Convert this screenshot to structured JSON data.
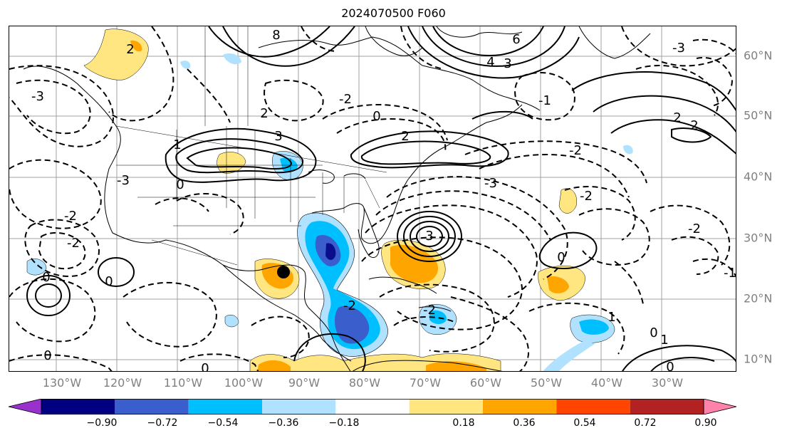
{
  "title": "2024070500 F060",
  "lon_labels": [
    "130°W",
    "120°W",
    "110°W",
    "100°W",
    "90°W",
    "80°W",
    "70°W",
    "60°W",
    "50°W",
    "40°W",
    "30°W"
  ],
  "lat_labels": [
    "60°N",
    "50°N",
    "40°N",
    "30°N",
    "20°N",
    "10°N"
  ],
  "contour_labels": [
    "8",
    "6",
    "4",
    "3",
    "2",
    "1",
    "0",
    "-1",
    "-2",
    "-3"
  ],
  "colorbar": {
    "ticks": [
      "−0.90",
      "−0.72",
      "−0.54",
      "−0.36",
      "−0.18",
      "0.18",
      "0.36",
      "0.54",
      "0.72",
      "0.90"
    ],
    "colors": [
      "#9932cc",
      "#000080",
      "#3a5fcd",
      "#00bfff",
      "#b0e2ff",
      "#ffffff",
      "#ffe680",
      "#ffa500",
      "#ff4500",
      "#b22222",
      "#ff82ab"
    ]
  },
  "marker": {
    "name": "low-center-marker",
    "color": "#000000"
  }
}
